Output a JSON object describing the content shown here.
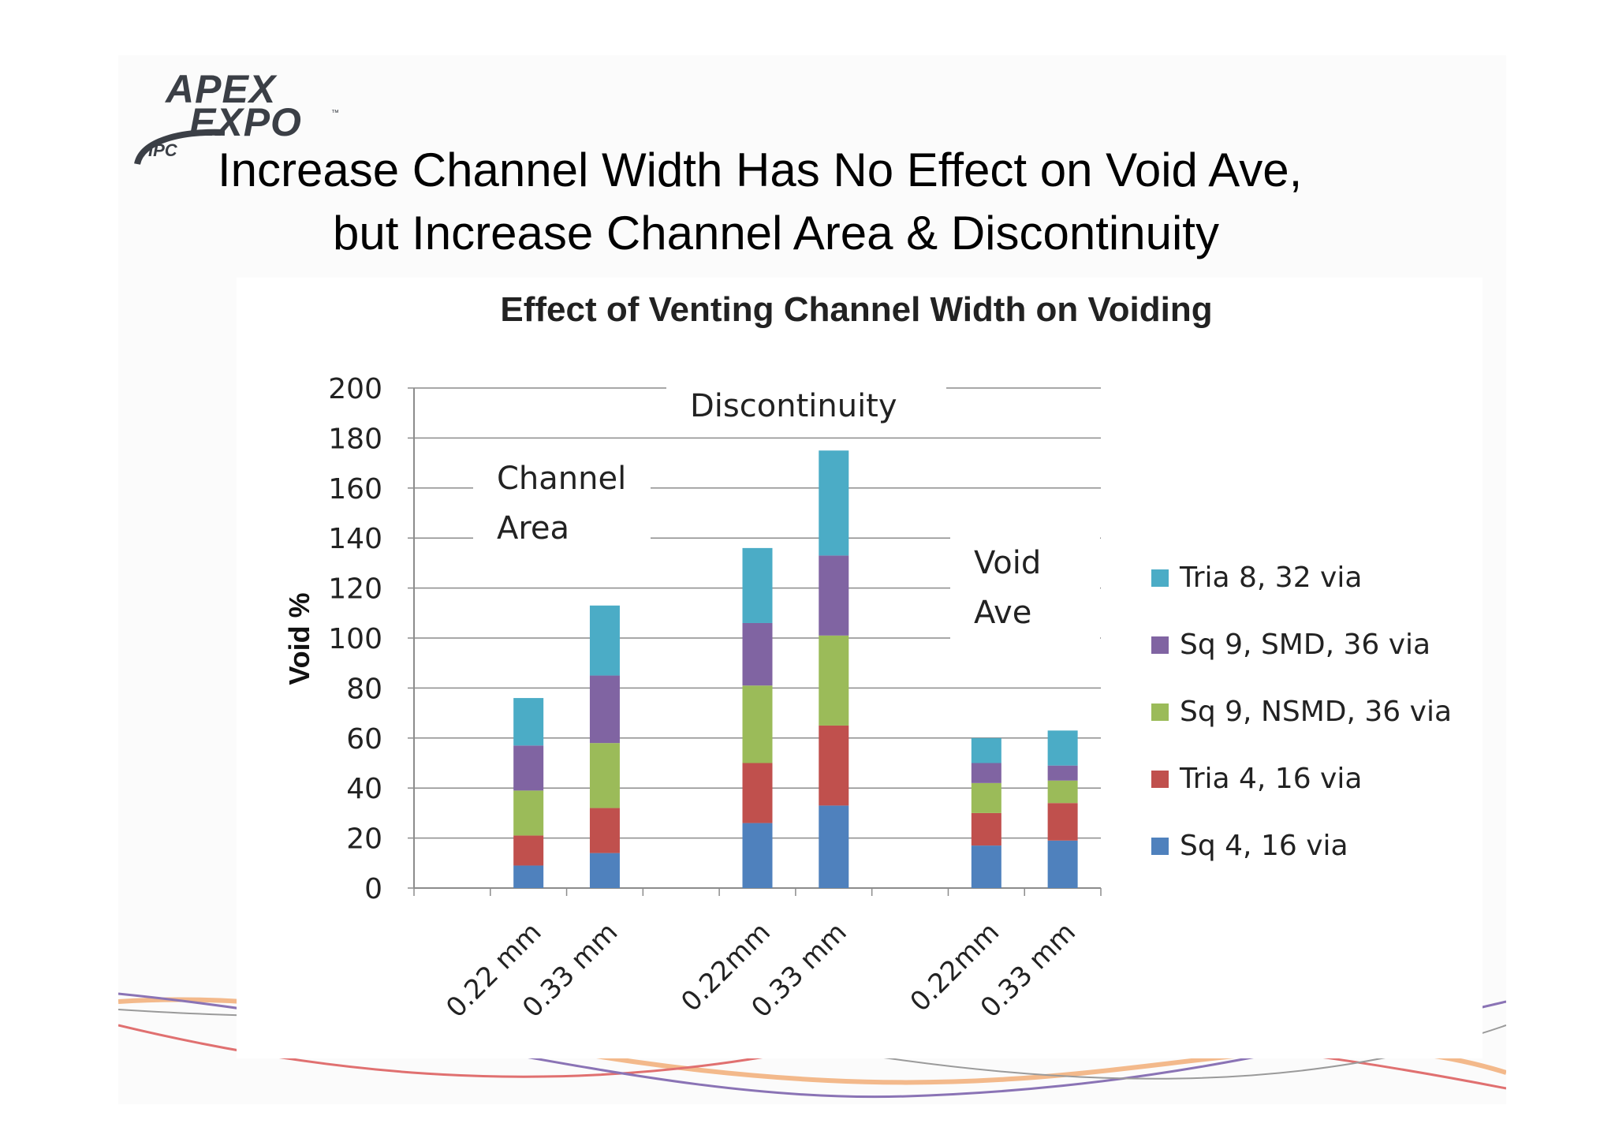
{
  "logo": {
    "line1": "APEX",
    "line2": "EXPO",
    "trademark": "™",
    "line3": "IPC"
  },
  "headline": {
    "line1": "Increase Channel Width Has No Effect on Void Ave,",
    "line2": "but Increase Channel Area & Discontinuity"
  },
  "chart_data": {
    "type": "bar",
    "stacked": true,
    "title": "Effect of Venting Channel Width on Voiding",
    "ylabel": "Void %",
    "xlabel": "",
    "ylim": [
      0,
      200
    ],
    "yticks": [
      0,
      20,
      40,
      60,
      80,
      100,
      120,
      140,
      160,
      180,
      200
    ],
    "grid": true,
    "legend_position": "right",
    "categories": [
      "0.22 mm",
      "0.33 mm",
      "0.22mm",
      "0.33 mm",
      "0.22mm",
      "0.33 mm"
    ],
    "groups": [
      {
        "label_line1": "Channel",
        "label_line2": "Area"
      },
      {
        "label_line1": "Discontinuity",
        "label_line2": ""
      },
      {
        "label_line1": "Void",
        "label_line2": "Ave"
      }
    ],
    "series": [
      {
        "name": "Sq 4, 16 via",
        "color": "#4f81bd",
        "values": [
          9,
          14,
          26,
          33,
          17,
          19
        ]
      },
      {
        "name": "Tria 4, 16 via",
        "color": "#c0504d",
        "values": [
          12,
          18,
          24,
          32,
          13,
          15
        ]
      },
      {
        "name": "Sq 9, NSMD, 36 via",
        "color": "#9bbb59",
        "values": [
          18,
          26,
          31,
          36,
          12,
          9
        ]
      },
      {
        "name": "Sq 9, SMD, 36 via",
        "color": "#8064a2",
        "values": [
          18,
          27,
          25,
          32,
          8,
          6
        ]
      },
      {
        "name": "Tria 8, 32 via",
        "color": "#4bacc6",
        "values": [
          19,
          28,
          30,
          42,
          10,
          14
        ]
      }
    ]
  }
}
